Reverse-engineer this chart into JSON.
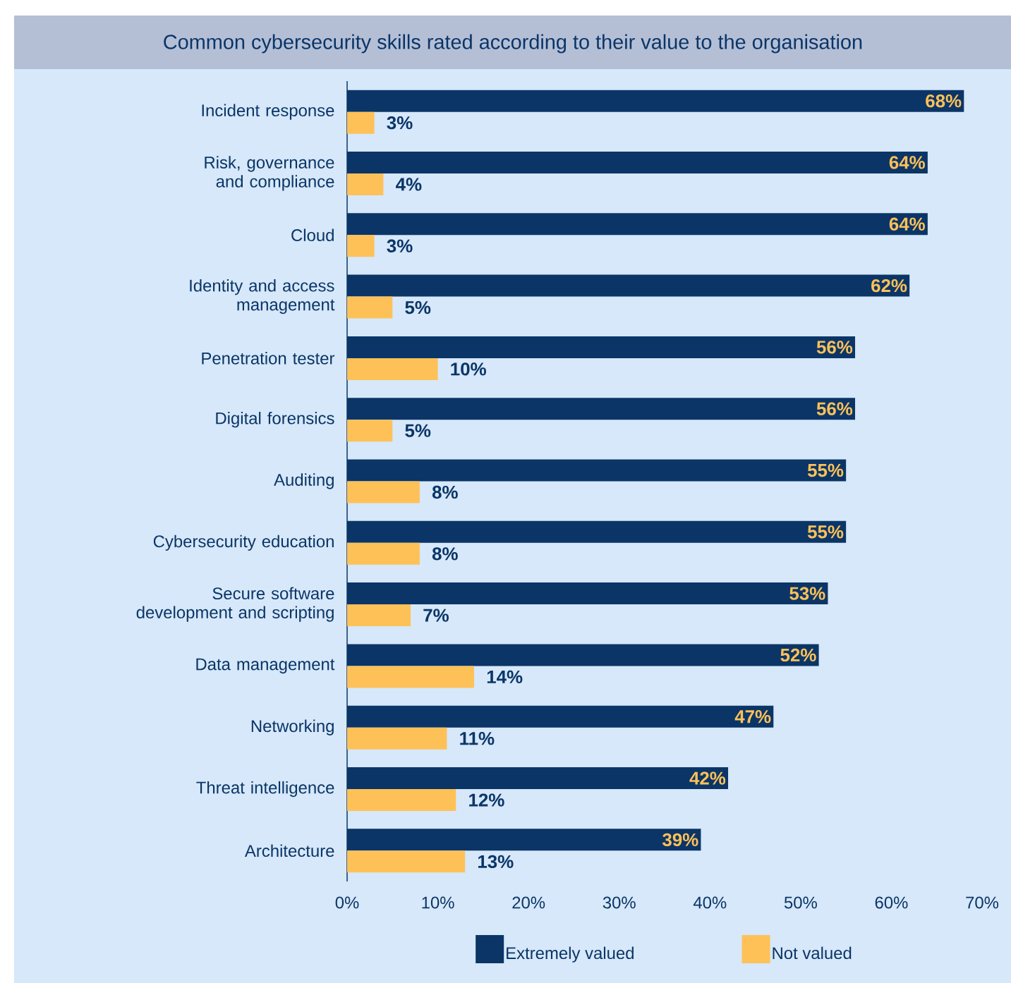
{
  "chart_data": {
    "type": "bar",
    "orientation": "horizontal",
    "title": "Common cybersecurity skills rated according to their value to the organisation",
    "categories": [
      "Incident response",
      "Risk, governance and compliance",
      "Cloud",
      "Identity and access management",
      "Penetration tester",
      "Digital forensics",
      "Auditing",
      "Cybersecurity education",
      "Secure software development and scripting",
      "Data management",
      "Networking",
      "Threat intelligence",
      "Architecture"
    ],
    "series": [
      {
        "name": "Extremely valued",
        "color": "#0b3567",
        "values": [
          68,
          64,
          64,
          62,
          56,
          56,
          55,
          55,
          53,
          52,
          47,
          42,
          39
        ],
        "value_labels": [
          "68%",
          "64%",
          "64%",
          "62%",
          "56%",
          "56%",
          "55%",
          "55%",
          "53%",
          "52%",
          "47%",
          "42%",
          "39%"
        ]
      },
      {
        "name": "Not valued",
        "color": "#fec158",
        "values": [
          3,
          4,
          3,
          5,
          10,
          5,
          8,
          8,
          7,
          14,
          11,
          12,
          13
        ],
        "value_labels": [
          "3%",
          "4%",
          "3%",
          "5%",
          "10%",
          "5%",
          "8%",
          "8%",
          "7%",
          "14%",
          "11%",
          "12%",
          "13%"
        ]
      }
    ],
    "xlim": [
      0,
      70
    ],
    "xticks": [
      {
        "value": 0,
        "label": "0%"
      },
      {
        "value": 10,
        "label": "10%"
      },
      {
        "value": 20,
        "label": "20%"
      },
      {
        "value": 30,
        "label": "30%"
      },
      {
        "value": 40,
        "label": "40%"
      },
      {
        "value": 50,
        "label": "50%"
      },
      {
        "value": 60,
        "label": "60%"
      },
      {
        "value": 70,
        "label": "70%"
      }
    ],
    "legend": "bottom"
  }
}
